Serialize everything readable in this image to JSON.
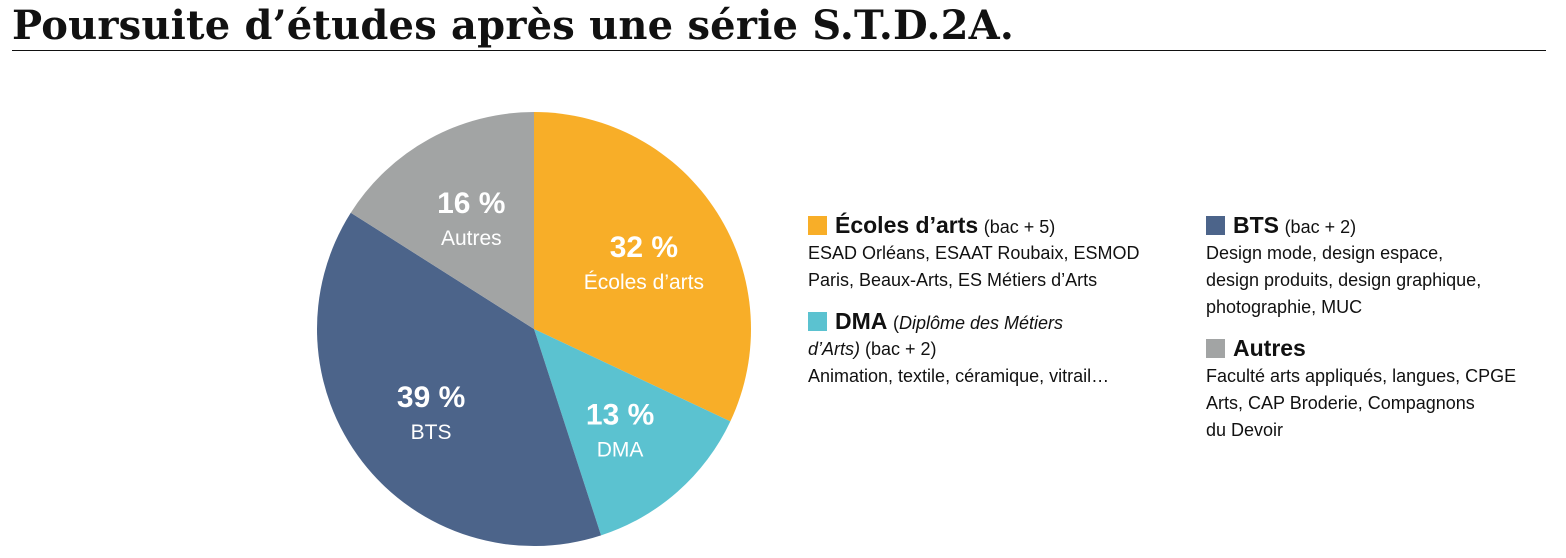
{
  "title": "Poursuite d’études après une série S.T.D.2A.",
  "chart_data": {
    "type": "pie",
    "title": "Poursuite d’études après une série S.T.D.2A.",
    "unit": "%",
    "slices": [
      {
        "name": "Écoles d’arts",
        "value": 32,
        "label": "32 %",
        "color": "#F8AE28"
      },
      {
        "name": "DMA",
        "value": 13,
        "label": "13 %",
        "color": "#5BC2D0"
      },
      {
        "name": "BTS",
        "value": 39,
        "label": "39 %",
        "color": "#4C648A"
      },
      {
        "name": "Autres",
        "value": 16,
        "label": "16 %",
        "color": "#A2A4A4"
      }
    ],
    "start_angle_deg": 0,
    "direction": "clockwise",
    "legend_placement": "right"
  },
  "legend": {
    "ecoles": {
      "name": "Écoles d’arts",
      "qualifier": "(bac + 5)",
      "lines": [
        "ESAD Orléans, ESAAT Roubaix, ESMOD",
        "Paris, Beaux-Arts, ES Métiers d’Arts"
      ]
    },
    "dma": {
      "name": "DMA",
      "qualifier_open": "(",
      "qualifier_italic_1": "Diplôme des Métiers",
      "qualifier_italic_2": "d’Arts)",
      "qualifier_rest": " (bac + 2)",
      "lines": [
        "Animation, textile, céramique, vitrail…"
      ]
    },
    "bts": {
      "name": "BTS",
      "qualifier": "(bac + 2)",
      "lines": [
        "Design mode, design espace,",
        "design produits, design graphique,",
        "photographie, MUC"
      ]
    },
    "autres": {
      "name": "Autres",
      "lines": [
        "Faculté arts appliqués, langues, CPGE",
        "Arts, CAP Broderie, Compagnons",
        "du Devoir"
      ]
    }
  }
}
